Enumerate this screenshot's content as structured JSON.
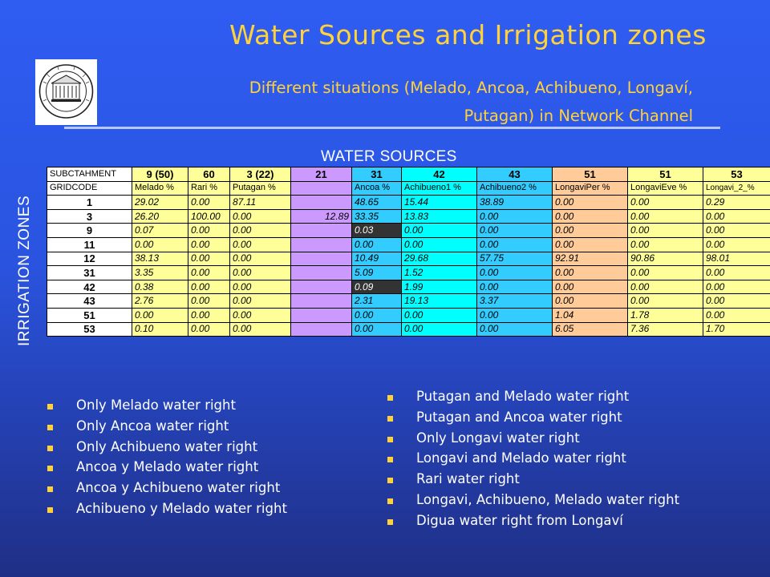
{
  "title": "Water Sources and Irrigation zones",
  "subtitle": "Different situations (Melado, Ancoa, Achibueno, Longaví, Putagan) in Network Channel",
  "water_sources_label": "WATER SOURCES",
  "irrigation_zones_label": "IRRIGATION ZONES",
  "colors": {
    "accent_yellow": "#ffd23a",
    "background_blue": "#2f5df2"
  },
  "table": {
    "header_row1": [
      "SUBCTAHMENT",
      "9 (50)",
      "60",
      "3 (22)",
      "21",
      "31",
      "42",
      "43",
      "51",
      "51",
      "53"
    ],
    "header_row2": [
      "GRIDCODE",
      "Melado  %",
      "Rari  %",
      "Putagan  %",
      "",
      "Ancoa  %",
      "Achibueno1  %",
      "Achibueno2  %",
      "LongaviPer  %",
      "LongaviEve  %",
      "Longavi_2_%"
    ],
    "rows": [
      [
        "1",
        "29.02",
        "0.00",
        "87.11",
        "",
        "48.65",
        "15.44",
        "38.89",
        "0.00",
        "0.00",
        "0.29"
      ],
      [
        "3",
        "26.20",
        "100.00",
        "0.00",
        "12.89",
        "33.35",
        "13.83",
        "0.00",
        "0.00",
        "0.00",
        "0.00"
      ],
      [
        "9",
        "0.07",
        "0.00",
        "0.00",
        "",
        "0.03",
        "0.00",
        "0.00",
        "0.00",
        "0.00",
        "0.00"
      ],
      [
        "11",
        "0.00",
        "0.00",
        "0.00",
        "",
        "0.00",
        "0.00",
        "0.00",
        "0.00",
        "0.00",
        "0.00"
      ],
      [
        "12",
        "38.13",
        "0.00",
        "0.00",
        "",
        "10.49",
        "29.68",
        "57.75",
        "92.91",
        "90.86",
        "98.01"
      ],
      [
        "31",
        "3.35",
        "0.00",
        "0.00",
        "",
        "5.09",
        "1.52",
        "0.00",
        "0.00",
        "0.00",
        "0.00"
      ],
      [
        "42",
        "0.38",
        "0.00",
        "0.00",
        "",
        "0.09",
        "1.99",
        "0.00",
        "0.00",
        "0.00",
        "0.00"
      ],
      [
        "43",
        "2.76",
        "0.00",
        "0.00",
        "",
        "2.31",
        "19.13",
        "3.37",
        "0.00",
        "0.00",
        "0.00"
      ],
      [
        "51",
        "0.00",
        "0.00",
        "0.00",
        "",
        "0.00",
        "0.00",
        "0.00",
        "1.04",
        "1.78",
        "0.00"
      ],
      [
        "53",
        "0.10",
        "0.00",
        "0.00",
        "",
        "0.00",
        "0.00",
        "0.00",
        "6.05",
        "7.36",
        "1.70"
      ]
    ]
  },
  "bullets_left": [
    "Only Melado water right",
    "Only Ancoa water right",
    "Only Achibueno water right",
    "Ancoa y Melado water right",
    "Ancoa y Achibueno water right",
    "Achibueno y Melado water right"
  ],
  "bullets_right": [
    "Putagan and Melado water right",
    "Putagan and Ancoa water right",
    "Only Longavi water right",
    "Longavi and Melado water right",
    "Rari water right",
    "Longavi, Achibueno, Melado water right",
    "Digua water right from Longaví"
  ],
  "logo_icon": "university-seal-icon"
}
